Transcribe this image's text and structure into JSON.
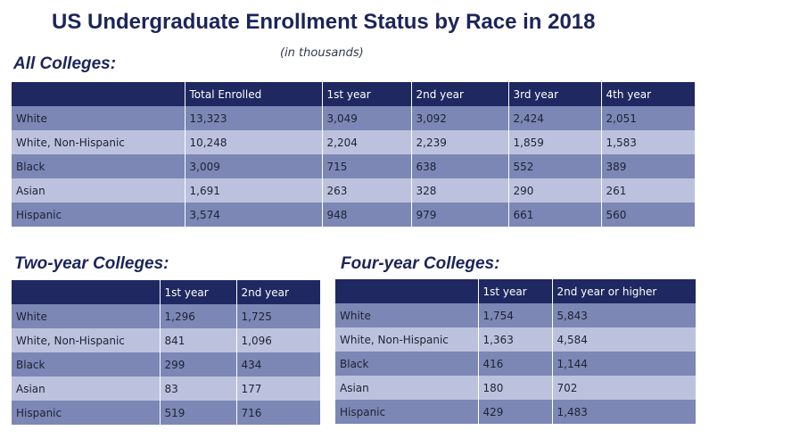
{
  "title": "US Undergraduate Enrollment Status by Race in 2018",
  "subtitle": "(in thousands)",
  "colors": {
    "title": "#1c2559",
    "header_bg": "#1f2860",
    "row_dark": "#7c87b5",
    "row_light": "#bcc2de"
  },
  "all_colleges": {
    "heading": "All Colleges:",
    "columns": [
      "",
      "Total Enrolled",
      "1st year",
      "2nd year",
      "3rd year",
      "4th year"
    ],
    "rows": [
      [
        "White",
        "13,323",
        "3,049",
        "3,092",
        "2,424",
        "2,051"
      ],
      [
        "White, Non-Hispanic",
        "10,248",
        "2,204",
        "2,239",
        "1,859",
        "1,583"
      ],
      [
        "Black",
        "3,009",
        "715",
        "638",
        "552",
        "389"
      ],
      [
        "Asian",
        "1,691",
        "263",
        "328",
        "290",
        "261"
      ],
      [
        "Hispanic",
        "3,574",
        "948",
        "979",
        "661",
        "560"
      ]
    ]
  },
  "two_year": {
    "heading": "Two-year Colleges:",
    "columns": [
      "",
      "1st year",
      "2nd year"
    ],
    "rows": [
      [
        "White",
        "1,296",
        "1,725"
      ],
      [
        "White, Non-Hispanic",
        "841",
        "1,096"
      ],
      [
        "Black",
        "299",
        "434"
      ],
      [
        "Asian",
        "83",
        "177"
      ],
      [
        "Hispanic",
        "519",
        "716"
      ]
    ]
  },
  "four_year": {
    "heading": "Four-year Colleges:",
    "columns": [
      "",
      "1st year",
      "2nd year or higher"
    ],
    "rows": [
      [
        "White",
        "1,754",
        "5,843"
      ],
      [
        "White, Non-Hispanic",
        "1,363",
        "4,584"
      ],
      [
        "Black",
        "416",
        "1,144"
      ],
      [
        "Asian",
        "180",
        "702"
      ],
      [
        "Hispanic",
        "429",
        "1,483"
      ]
    ]
  }
}
